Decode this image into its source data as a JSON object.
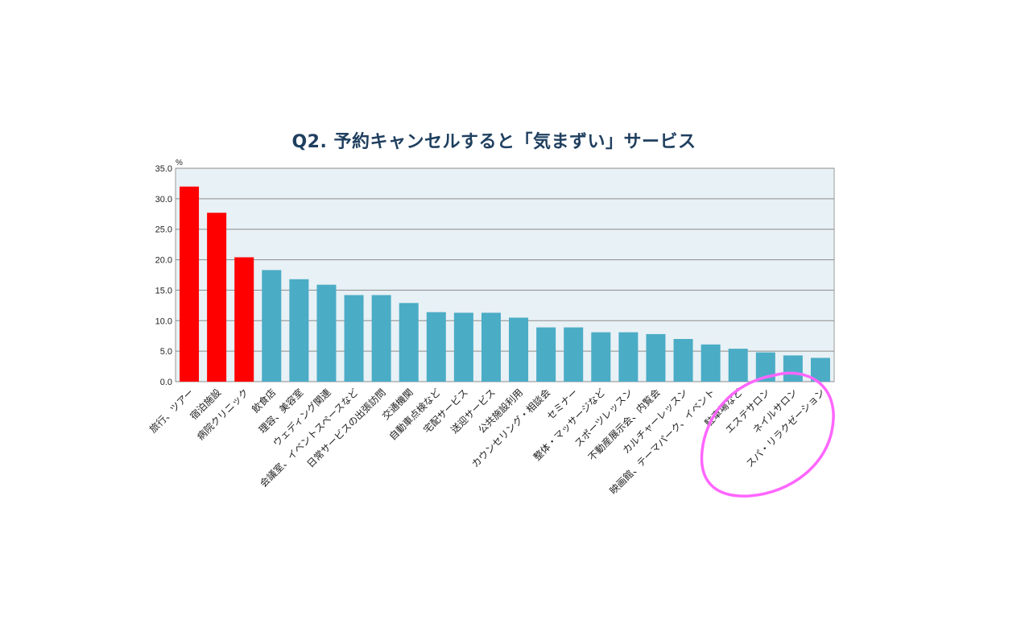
{
  "chart_data": {
    "type": "bar",
    "title": "Q2. 予約キャンセルすると「気まずい」サービス",
    "ylabel": "%",
    "xlabel": "",
    "ylim": [
      0,
      35
    ],
    "yticks": [
      "0.0",
      "5.0",
      "10.0",
      "15.0",
      "20.0",
      "25.0",
      "30.0",
      "35.0"
    ],
    "grid": true,
    "categories": [
      "旅行、ツアー",
      "宿泊施設",
      "病院クリニック",
      "飲食店",
      "理容、美容室",
      "ウェディング関連",
      "会議室、イベントスペースなど",
      "日常サービスの出張訪問",
      "交通機関",
      "自動車点検など",
      "宅配サービス",
      "送迎サービス",
      "公共施設利用",
      "カウンセリング・相談会",
      "セミナー",
      "整体・マッサージなど",
      "スポーツレッスン",
      "不動産展示会、内覧会",
      "カルチャーレッスン",
      "映画館、テーマパーク、イベント",
      "駐車場など",
      "エステサロン",
      "ネイルサロン",
      "スパ・リラクゼーション"
    ],
    "values": [
      32.0,
      27.7,
      20.4,
      18.3,
      16.8,
      15.9,
      14.2,
      14.2,
      12.9,
      11.4,
      11.3,
      11.3,
      10.5,
      8.9,
      8.9,
      8.1,
      8.1,
      7.8,
      7.0,
      6.1,
      5.4,
      4.8,
      4.3,
      3.9
    ],
    "highlighted": [
      true,
      true,
      true,
      false,
      false,
      false,
      false,
      false,
      false,
      false,
      false,
      false,
      false,
      false,
      false,
      false,
      false,
      false,
      false,
      false,
      false,
      false,
      false,
      false
    ],
    "colors": {
      "highlight": "#ff0000",
      "default": "#4bacc6",
      "plot_bg": "#e8f1f5",
      "grid": "#8c8c8c",
      "circle": "#ff66ff"
    },
    "annotation": "hand-drawn magenta circle around the last four categories"
  }
}
